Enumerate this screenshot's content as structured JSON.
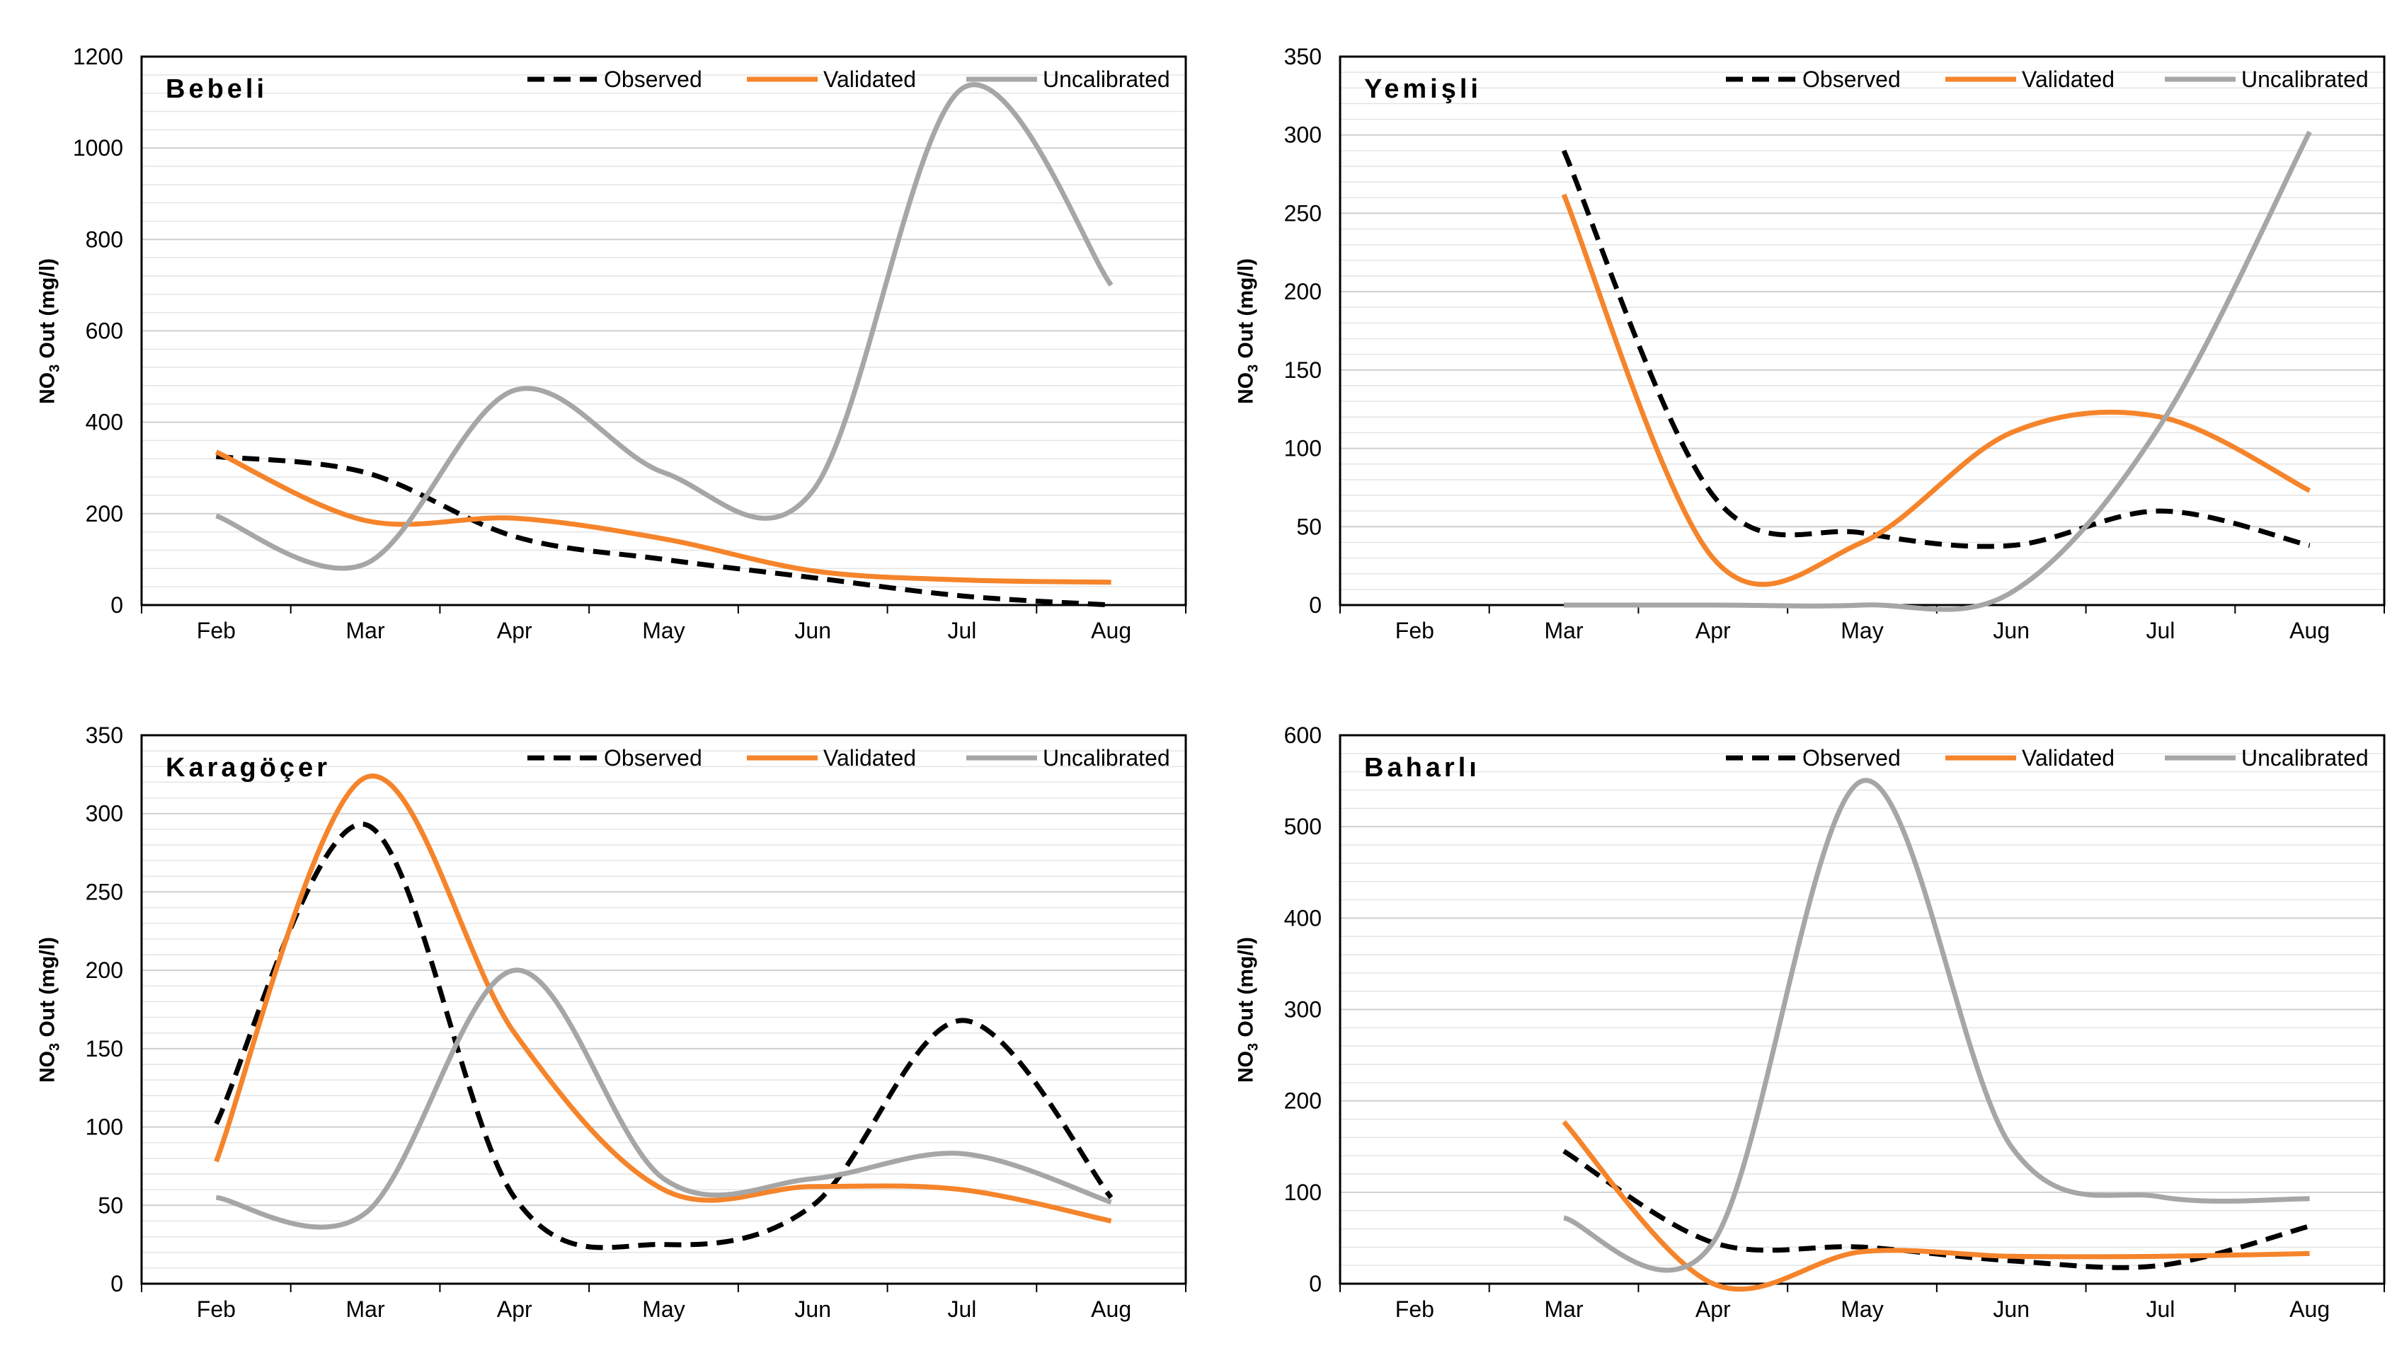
{
  "figure": {
    "y_unit_sub": "3"
  },
  "chart_data": [
    {
      "type": "line",
      "title": "Bebeli",
      "xlabel": "",
      "ylabel": "NO3 Out (mg/l)",
      "ylabel_parts": {
        "pre": "NO",
        "sub": "3",
        "post": " Out (mg/l)"
      },
      "categories": [
        "Feb",
        "Mar",
        "Apr",
        "May",
        "Jun",
        "Jul",
        "Aug"
      ],
      "ylim": [
        0,
        1200
      ],
      "yticks": [
        0,
        200,
        400,
        600,
        800,
        1000,
        1200
      ],
      "minor_step": 40,
      "legend_position": "top-right",
      "series": [
        {
          "name": "Observed",
          "style": "dashed",
          "color": "#000000",
          "values": [
            325,
            290,
            150,
            100,
            60,
            20,
            0
          ]
        },
        {
          "name": "Validated",
          "style": "solid",
          "color": "#F5842B",
          "values": [
            335,
            185,
            190,
            145,
            75,
            55,
            50
          ]
        },
        {
          "name": "Uncalibrated",
          "style": "solid",
          "color": "#A6A6A6",
          "values": [
            195,
            90,
            470,
            290,
            250,
            1130,
            700
          ]
        }
      ]
    },
    {
      "type": "line",
      "title": "Yemişli",
      "xlabel": "",
      "ylabel": "NO3 Out (mg/l)",
      "ylabel_parts": {
        "pre": "NO",
        "sub": "3",
        "post": " Out (mg/l)"
      },
      "categories": [
        "Feb",
        "Mar",
        "Apr",
        "May",
        "Jun",
        "Jul",
        "Aug"
      ],
      "ylim": [
        0,
        350
      ],
      "yticks": [
        0,
        50,
        100,
        150,
        200,
        250,
        300,
        350
      ],
      "minor_step": 10,
      "legend_position": "top-right",
      "series": [
        {
          "name": "Observed",
          "style": "dashed",
          "color": "#000000",
          "values": [
            null,
            290,
            70,
            46,
            38,
            60,
            38
          ]
        },
        {
          "name": "Validated",
          "style": "solid",
          "color": "#F5842B",
          "values": [
            null,
            262,
            30,
            40,
            110,
            120,
            73
          ]
        },
        {
          "name": "Uncalibrated",
          "style": "solid",
          "color": "#A6A6A6",
          "values": [
            null,
            0,
            0,
            0,
            8,
            115,
            302
          ]
        }
      ]
    },
    {
      "type": "line",
      "title": "Karagöçer",
      "xlabel": "",
      "ylabel": "NO3 Out (mg/l)",
      "ylabel_parts": {
        "pre": "NO",
        "sub": "3",
        "post": " Out (mg/l)"
      },
      "categories": [
        "Feb",
        "Mar",
        "Apr",
        "May",
        "Jun",
        "Jul",
        "Aug"
      ],
      "ylim": [
        0,
        350
      ],
      "yticks": [
        0,
        50,
        100,
        150,
        200,
        250,
        300,
        350
      ],
      "minor_step": 10,
      "legend_position": "top-right",
      "series": [
        {
          "name": "Observed",
          "style": "dashed",
          "color": "#000000",
          "values": [
            102,
            293,
            55,
            25,
            50,
            168,
            55
          ]
        },
        {
          "name": "Validated",
          "style": "solid",
          "color": "#F5842B",
          "values": [
            78,
            323,
            160,
            60,
            62,
            60,
            40
          ]
        },
        {
          "name": "Uncalibrated",
          "style": "solid",
          "color": "#A6A6A6",
          "values": [
            55,
            45,
            200,
            67,
            67,
            83,
            52
          ]
        }
      ]
    },
    {
      "type": "line",
      "title": "Baharlı",
      "xlabel": "",
      "ylabel": "NO3 Out (mg/l)",
      "ylabel_parts": {
        "pre": "NO",
        "sub": "3",
        "post": " Out (mg/l)"
      },
      "categories": [
        "Feb",
        "Mar",
        "Apr",
        "May",
        "Jun",
        "Jul",
        "Aug"
      ],
      "ylim": [
        0,
        600
      ],
      "yticks": [
        0,
        100,
        200,
        300,
        400,
        500,
        600
      ],
      "minor_step": 20,
      "legend_position": "top-right",
      "series": [
        {
          "name": "Observed",
          "style": "dashed",
          "color": "#000000",
          "values": [
            null,
            145,
            45,
            40,
            25,
            20,
            63
          ]
        },
        {
          "name": "Validated",
          "style": "solid",
          "color": "#F5842B",
          "values": [
            null,
            177,
            0,
            35,
            30,
            30,
            33
          ]
        },
        {
          "name": "Uncalibrated",
          "style": "solid",
          "color": "#A6A6A6",
          "values": [
            null,
            72,
            45,
            550,
            150,
            95,
            93
          ]
        }
      ]
    }
  ]
}
